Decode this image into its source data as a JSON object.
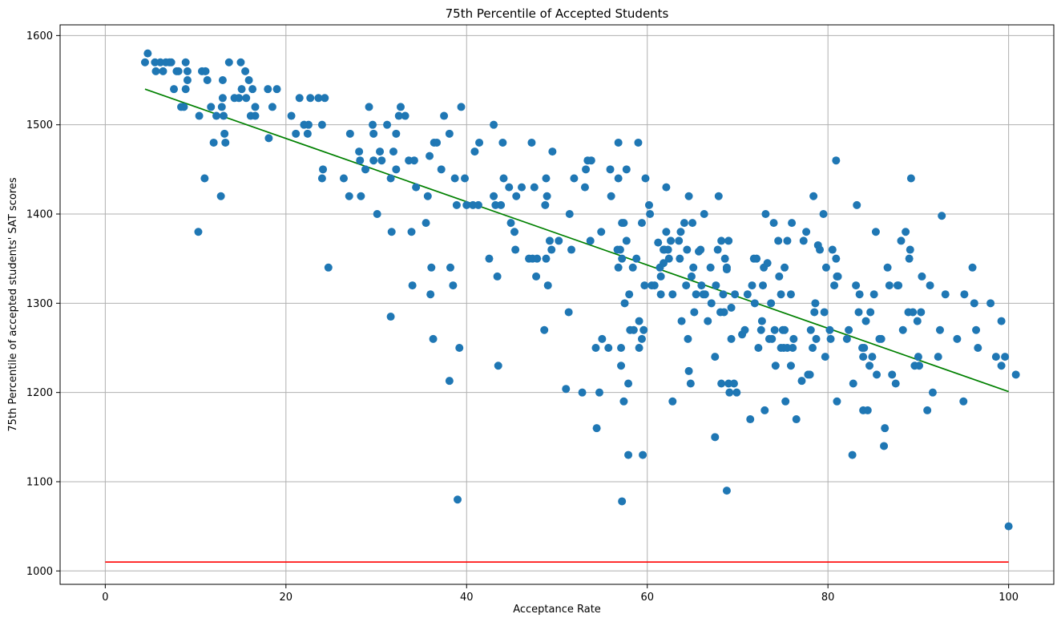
{
  "chart_data": {
    "type": "scatter",
    "title": "75th Percentile of Accepted Students",
    "xlabel": "Acceptance Rate",
    "ylabel": "75th Percentile of accepted students' SAT scores",
    "xlim": [
      -5,
      105
    ],
    "ylim": [
      985,
      1612
    ],
    "xticks": [
      0,
      20,
      40,
      60,
      80,
      100
    ],
    "xtick_labels": [
      "0",
      "20",
      "40",
      "60",
      "80",
      "100"
    ],
    "yticks": [
      1000,
      1100,
      1200,
      1300,
      1400,
      1500,
      1600
    ],
    "ytick_labels": [
      "1000",
      "1100",
      "1200",
      "1300",
      "1400",
      "1500",
      "1600"
    ],
    "grid": true,
    "colors": {
      "points": "#1f77b4",
      "trend": "#008000",
      "baseline": "#ff0000",
      "grid": "#b0b0b0"
    },
    "lines": [
      {
        "color": "#008000",
        "x": [
          4.4,
          100
        ],
        "y": [
          1540,
          1201
        ]
      },
      {
        "color": "#ff0000",
        "x": [
          0,
          100
        ],
        "y": [
          1010,
          1010
        ]
      }
    ],
    "points": [
      [
        4.4,
        1570
      ],
      [
        4.7,
        1580
      ],
      [
        5.5,
        1570
      ],
      [
        5.6,
        1560
      ],
      [
        6.1,
        1570
      ],
      [
        6.4,
        1560
      ],
      [
        6.7,
        1570
      ],
      [
        7.1,
        1570
      ],
      [
        7.3,
        1570
      ],
      [
        7.6,
        1540
      ],
      [
        7.9,
        1560
      ],
      [
        8.1,
        1560
      ],
      [
        8.4,
        1520
      ],
      [
        8.7,
        1520
      ],
      [
        8.9,
        1540
      ],
      [
        8.9,
        1570
      ],
      [
        9.1,
        1560
      ],
      [
        9.1,
        1550
      ],
      [
        10.3,
        1380
      ],
      [
        10.4,
        1510
      ],
      [
        10.7,
        1560
      ],
      [
        11.0,
        1440
      ],
      [
        11.1,
        1560
      ],
      [
        11.3,
        1550
      ],
      [
        11.7,
        1520
      ],
      [
        12.0,
        1480
      ],
      [
        12.3,
        1510
      ],
      [
        12.8,
        1420
      ],
      [
        12.9,
        1520
      ],
      [
        13.0,
        1550
      ],
      [
        13.0,
        1530
      ],
      [
        13.1,
        1510
      ],
      [
        13.2,
        1490
      ],
      [
        13.3,
        1480
      ],
      [
        13.7,
        1570
      ],
      [
        14.3,
        1530
      ],
      [
        14.8,
        1530
      ],
      [
        15.0,
        1570
      ],
      [
        15.1,
        1540
      ],
      [
        15.5,
        1560
      ],
      [
        15.6,
        1530
      ],
      [
        15.9,
        1550
      ],
      [
        16.1,
        1510
      ],
      [
        16.3,
        1540
      ],
      [
        16.6,
        1520
      ],
      [
        16.6,
        1510
      ],
      [
        18.0,
        1540
      ],
      [
        18.1,
        1485
      ],
      [
        18.5,
        1520
      ],
      [
        19.0,
        1540
      ],
      [
        20.6,
        1510
      ],
      [
        21.1,
        1490
      ],
      [
        21.5,
        1530
      ],
      [
        22.0,
        1500
      ],
      [
        22.4,
        1490
      ],
      [
        22.5,
        1500
      ],
      [
        22.7,
        1530
      ],
      [
        23.6,
        1530
      ],
      [
        24.0,
        1500
      ],
      [
        24.0,
        1440
      ],
      [
        24.1,
        1450
      ],
      [
        24.3,
        1530
      ],
      [
        24.7,
        1340
      ],
      [
        26.4,
        1440
      ],
      [
        27.0,
        1420
      ],
      [
        27.1,
        1490
      ],
      [
        28.1,
        1470
      ],
      [
        28.2,
        1460
      ],
      [
        28.3,
        1420
      ],
      [
        28.8,
        1450
      ],
      [
        29.2,
        1520
      ],
      [
        29.6,
        1500
      ],
      [
        29.7,
        1490
      ],
      [
        29.7,
        1460
      ],
      [
        30.1,
        1400
      ],
      [
        30.4,
        1470
      ],
      [
        30.6,
        1460
      ],
      [
        31.2,
        1500
      ],
      [
        31.6,
        1440
      ],
      [
        31.7,
        1380
      ],
      [
        31.6,
        1285
      ],
      [
        31.9,
        1470
      ],
      [
        32.2,
        1450
      ],
      [
        32.2,
        1490
      ],
      [
        32.5,
        1510
      ],
      [
        32.7,
        1520
      ],
      [
        33.2,
        1510
      ],
      [
        33.6,
        1460
      ],
      [
        33.9,
        1380
      ],
      [
        34.0,
        1320
      ],
      [
        34.2,
        1460
      ],
      [
        34.4,
        1430
      ],
      [
        35.5,
        1390
      ],
      [
        35.7,
        1420
      ],
      [
        35.9,
        1465
      ],
      [
        36.1,
        1340
      ],
      [
        36.0,
        1310
      ],
      [
        36.3,
        1260
      ],
      [
        36.4,
        1480
      ],
      [
        36.7,
        1480
      ],
      [
        37.2,
        1450
      ],
      [
        37.5,
        1510
      ],
      [
        38.1,
        1490
      ],
      [
        38.1,
        1213
      ],
      [
        38.2,
        1340
      ],
      [
        38.5,
        1320
      ],
      [
        38.7,
        1440
      ],
      [
        38.9,
        1410
      ],
      [
        39.0,
        1080
      ],
      [
        39.2,
        1250
      ],
      [
        39.4,
        1520
      ],
      [
        39.8,
        1440
      ],
      [
        40.0,
        1410
      ],
      [
        40.7,
        1410
      ],
      [
        40.9,
        1470
      ],
      [
        41.3,
        1410
      ],
      [
        41.4,
        1480
      ],
      [
        42.5,
        1350
      ],
      [
        43.0,
        1500
      ],
      [
        43.0,
        1420
      ],
      [
        43.2,
        1410
      ],
      [
        43.4,
        1330
      ],
      [
        43.5,
        1230
      ],
      [
        43.8,
        1410
      ],
      [
        44.0,
        1480
      ],
      [
        44.1,
        1440
      ],
      [
        44.7,
        1430
      ],
      [
        44.9,
        1390
      ],
      [
        45.3,
        1380
      ],
      [
        45.4,
        1360
      ],
      [
        45.5,
        1420
      ],
      [
        46.1,
        1430
      ],
      [
        46.9,
        1350
      ],
      [
        47.2,
        1480
      ],
      [
        47.3,
        1350
      ],
      [
        47.5,
        1430
      ],
      [
        47.7,
        1330
      ],
      [
        47.8,
        1350
      ],
      [
        48.6,
        1270
      ],
      [
        48.7,
        1410
      ],
      [
        48.8,
        1440
      ],
      [
        48.8,
        1350
      ],
      [
        48.9,
        1420
      ],
      [
        49.0,
        1320
      ],
      [
        49.2,
        1370
      ],
      [
        49.4,
        1360
      ],
      [
        49.5,
        1470
      ],
      [
        50.2,
        1370
      ],
      [
        51.0,
        1204
      ],
      [
        51.3,
        1290
      ],
      [
        51.4,
        1400
      ],
      [
        51.6,
        1360
      ],
      [
        51.9,
        1440
      ],
      [
        52.8,
        1200
      ],
      [
        53.1,
        1430
      ],
      [
        53.2,
        1450
      ],
      [
        53.4,
        1460
      ],
      [
        53.7,
        1370
      ],
      [
        53.8,
        1460
      ],
      [
        54.3,
        1250
      ],
      [
        54.4,
        1160
      ],
      [
        54.7,
        1200
      ],
      [
        54.9,
        1380
      ],
      [
        55.0,
        1260
      ],
      [
        55.7,
        1250
      ],
      [
        55.9,
        1450
      ],
      [
        56.0,
        1420
      ],
      [
        56.8,
        1480
      ],
      [
        56.8,
        1440
      ],
      [
        56.7,
        1360
      ],
      [
        56.8,
        1340
      ],
      [
        57.0,
        1360
      ],
      [
        57.1,
        1250
      ],
      [
        57.1,
        1230
      ],
      [
        57.2,
        1390
      ],
      [
        57.2,
        1350
      ],
      [
        57.2,
        1078
      ],
      [
        57.4,
        1190
      ],
      [
        57.4,
        1390
      ],
      [
        57.5,
        1300
      ],
      [
        57.7,
        1450
      ],
      [
        57.7,
        1370
      ],
      [
        57.9,
        1210
      ],
      [
        57.9,
        1130
      ],
      [
        58.0,
        1310
      ],
      [
        58.1,
        1270
      ],
      [
        58.4,
        1340
      ],
      [
        58.5,
        1270
      ],
      [
        58.8,
        1350
      ],
      [
        59.0,
        1480
      ],
      [
        59.1,
        1250
      ],
      [
        59.1,
        1280
      ],
      [
        59.4,
        1390
      ],
      [
        59.5,
        1130
      ],
      [
        59.6,
        1270
      ],
      [
        59.7,
        1320
      ],
      [
        59.8,
        1440
      ],
      [
        59.4,
        1260
      ],
      [
        60.2,
        1410
      ],
      [
        60.3,
        1400
      ],
      [
        60.5,
        1320
      ],
      [
        60.8,
        1320
      ],
      [
        61.2,
        1368
      ],
      [
        61.5,
        1310
      ],
      [
        61.4,
        1340
      ],
      [
        61.5,
        1330
      ],
      [
        61.8,
        1345
      ],
      [
        61.9,
        1360
      ],
      [
        61.8,
        1360
      ],
      [
        62.1,
        1430
      ],
      [
        62.1,
        1380
      ],
      [
        62.3,
        1360
      ],
      [
        62.4,
        1350
      ],
      [
        62.8,
        1190
      ],
      [
        62.6,
        1370
      ],
      [
        62.8,
        1310
      ],
      [
        63.5,
        1370
      ],
      [
        63.6,
        1350
      ],
      [
        63.7,
        1380
      ],
      [
        63.8,
        1280
      ],
      [
        64.1,
        1390
      ],
      [
        64.3,
        1320
      ],
      [
        64.4,
        1360
      ],
      [
        64.5,
        1260
      ],
      [
        64.6,
        1224
      ],
      [
        64.8,
        1210
      ],
      [
        64.6,
        1420
      ],
      [
        64.9,
        1330
      ],
      [
        65.0,
        1390
      ],
      [
        65.1,
        1340
      ],
      [
        65.2,
        1290
      ],
      [
        65.4,
        1310
      ],
      [
        65.7,
        1358
      ],
      [
        65.9,
        1360
      ],
      [
        66.0,
        1320
      ],
      [
        66.2,
        1310
      ],
      [
        66.4,
        1310
      ],
      [
        66.3,
        1400
      ],
      [
        66.7,
        1280
      ],
      [
        67.0,
        1340
      ],
      [
        67.1,
        1300
      ],
      [
        67.5,
        1240
      ],
      [
        67.5,
        1150
      ],
      [
        67.6,
        1320
      ],
      [
        67.8,
        1360
      ],
      [
        67.9,
        1420
      ],
      [
        68.1,
        1290
      ],
      [
        68.2,
        1370
      ],
      [
        68.2,
        1210
      ],
      [
        68.5,
        1290
      ],
      [
        68.4,
        1310
      ],
      [
        68.6,
        1350
      ],
      [
        68.8,
        1340
      ],
      [
        68.8,
        1338
      ],
      [
        69.0,
        1370
      ],
      [
        68.8,
        1090
      ],
      [
        69.0,
        1210
      ],
      [
        69.1,
        1200
      ],
      [
        69.3,
        1260
      ],
      [
        69.3,
        1295
      ],
      [
        69.6,
        1210
      ],
      [
        69.7,
        1310
      ],
      [
        69.9,
        1200
      ],
      [
        70.5,
        1265
      ],
      [
        70.8,
        1270
      ],
      [
        71.1,
        1310
      ],
      [
        71.4,
        1170
      ],
      [
        71.6,
        1320
      ],
      [
        71.8,
        1350
      ],
      [
        71.9,
        1300
      ],
      [
        72.1,
        1350
      ],
      [
        72.3,
        1250
      ],
      [
        72.6,
        1270
      ],
      [
        72.7,
        1280
      ],
      [
        72.8,
        1320
      ],
      [
        72.9,
        1340
      ],
      [
        73.1,
        1400
      ],
      [
        73.0,
        1180
      ],
      [
        73.3,
        1345
      ],
      [
        73.5,
        1260
      ],
      [
        73.7,
        1300
      ],
      [
        73.8,
        1260
      ],
      [
        74.0,
        1390
      ],
      [
        74.1,
        1270
      ],
      [
        74.2,
        1230
      ],
      [
        74.5,
        1370
      ],
      [
        74.6,
        1330
      ],
      [
        74.8,
        1250
      ],
      [
        74.8,
        1310
      ],
      [
        75.0,
        1270
      ],
      [
        75.1,
        1250
      ],
      [
        75.2,
        1270
      ],
      [
        75.2,
        1340
      ],
      [
        75.3,
        1190
      ],
      [
        75.5,
        1250
      ],
      [
        75.5,
        1370
      ],
      [
        75.9,
        1230
      ],
      [
        75.9,
        1310
      ],
      [
        76.0,
        1390
      ],
      [
        76.1,
        1250
      ],
      [
        76.2,
        1260
      ],
      [
        76.5,
        1170
      ],
      [
        77.1,
        1213
      ],
      [
        77.3,
        1370
      ],
      [
        77.6,
        1380
      ],
      [
        77.8,
        1220
      ],
      [
        78.0,
        1220
      ],
      [
        78.1,
        1270
      ],
      [
        78.3,
        1250
      ],
      [
        78.4,
        1420
      ],
      [
        78.5,
        1290
      ],
      [
        78.6,
        1300
      ],
      [
        78.7,
        1260
      ],
      [
        78.9,
        1365
      ],
      [
        79.1,
        1360
      ],
      [
        79.5,
        1400
      ],
      [
        79.6,
        1290
      ],
      [
        79.7,
        1240
      ],
      [
        79.8,
        1340
      ],
      [
        80.2,
        1270
      ],
      [
        80.3,
        1260
      ],
      [
        80.5,
        1360
      ],
      [
        80.7,
        1320
      ],
      [
        80.9,
        1350
      ],
      [
        80.9,
        1460
      ],
      [
        81.0,
        1330
      ],
      [
        81.1,
        1330
      ],
      [
        81.0,
        1190
      ],
      [
        82.1,
        1260
      ],
      [
        82.3,
        1270
      ],
      [
        82.7,
        1130
      ],
      [
        82.8,
        1210
      ],
      [
        83.1,
        1320
      ],
      [
        83.2,
        1410
      ],
      [
        83.4,
        1290
      ],
      [
        83.5,
        1310
      ],
      [
        83.8,
        1250
      ],
      [
        83.9,
        1240
      ],
      [
        83.9,
        1180
      ],
      [
        84.0,
        1250
      ],
      [
        84.2,
        1280
      ],
      [
        84.4,
        1180
      ],
      [
        84.6,
        1230
      ],
      [
        84.7,
        1290
      ],
      [
        84.9,
        1240
      ],
      [
        85.1,
        1310
      ],
      [
        85.3,
        1380
      ],
      [
        85.4,
        1220
      ],
      [
        85.7,
        1260
      ],
      [
        85.9,
        1260
      ],
      [
        86.3,
        1160
      ],
      [
        86.2,
        1140
      ],
      [
        86.6,
        1340
      ],
      [
        86.8,
        1320
      ],
      [
        87.1,
        1220
      ],
      [
        87.5,
        1210
      ],
      [
        87.8,
        1320
      ],
      [
        87.7,
        1320
      ],
      [
        88.1,
        1370
      ],
      [
        88.3,
        1270
      ],
      [
        88.6,
        1380
      ],
      [
        88.9,
        1290
      ],
      [
        89.0,
        1350
      ],
      [
        89.1,
        1360
      ],
      [
        89.2,
        1440
      ],
      [
        89.4,
        1290
      ],
      [
        89.6,
        1230
      ],
      [
        89.9,
        1280
      ],
      [
        90.0,
        1240
      ],
      [
        90.1,
        1230
      ],
      [
        90.3,
        1290
      ],
      [
        90.4,
        1330
      ],
      [
        91.0,
        1180
      ],
      [
        91.3,
        1320
      ],
      [
        91.6,
        1200
      ],
      [
        92.2,
        1240
      ],
      [
        92.4,
        1270
      ],
      [
        92.6,
        1398
      ],
      [
        93.0,
        1310
      ],
      [
        94.3,
        1260
      ],
      [
        95.0,
        1190
      ],
      [
        95.1,
        1310
      ],
      [
        96.0,
        1340
      ],
      [
        96.2,
        1300
      ],
      [
        96.4,
        1270
      ],
      [
        96.6,
        1250
      ],
      [
        98.0,
        1300
      ],
      [
        98.6,
        1240
      ],
      [
        99.2,
        1280
      ],
      [
        99.2,
        1230
      ],
      [
        99.6,
        1240
      ],
      [
        100.8,
        1220
      ],
      [
        100,
        1050
      ]
    ]
  }
}
